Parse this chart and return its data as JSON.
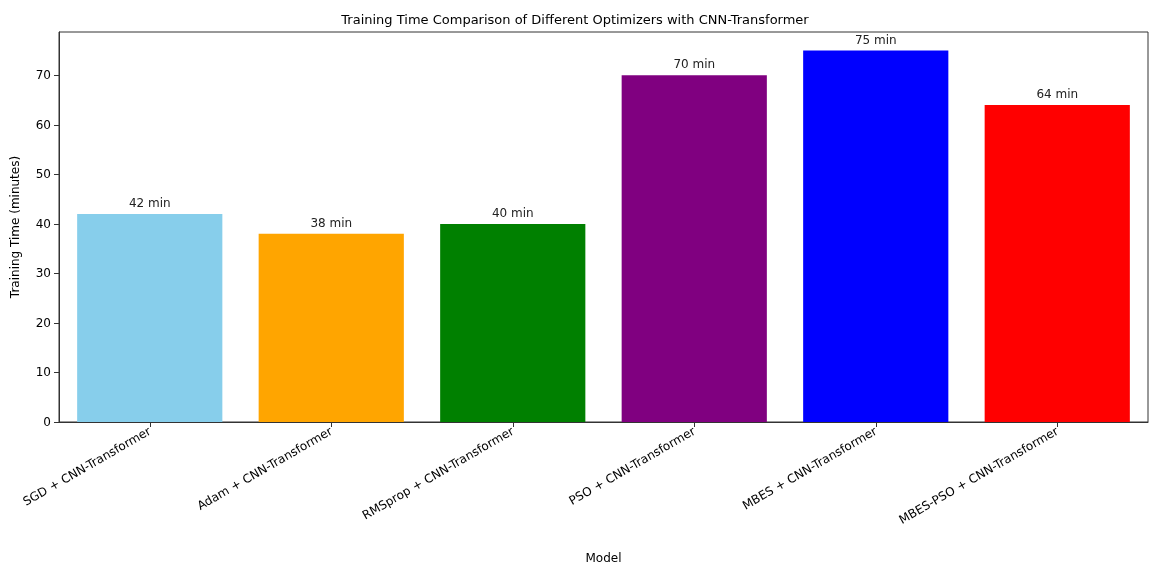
{
  "chart_data": {
    "type": "bar",
    "title": "Training Time Comparison of Different Optimizers with CNN-Transformer",
    "xlabel": "Model",
    "ylabel": "Training Time (minutes)",
    "categories": [
      "SGD + CNN-Transformer",
      "Adam + CNN-Transformer",
      "RMSprop + CNN-Transformer",
      "PSO + CNN-Transformer",
      "MBES + CNN-Transformer",
      "MBES-PSO + CNN-Transformer"
    ],
    "values": [
      42,
      38,
      40,
      70,
      75,
      64
    ],
    "colors": [
      "#87ceeb",
      "#ffa500",
      "#008000",
      "#800080",
      "#0000ff",
      "#ff0000"
    ],
    "value_labels": [
      "42 min",
      "38 min",
      "40 min",
      "70 min",
      "75 min",
      "64 min"
    ],
    "ylim": [
      0,
      78.75
    ],
    "yticks": [
      0,
      10,
      20,
      30,
      40,
      50,
      60,
      70
    ],
    "grid": false
  }
}
